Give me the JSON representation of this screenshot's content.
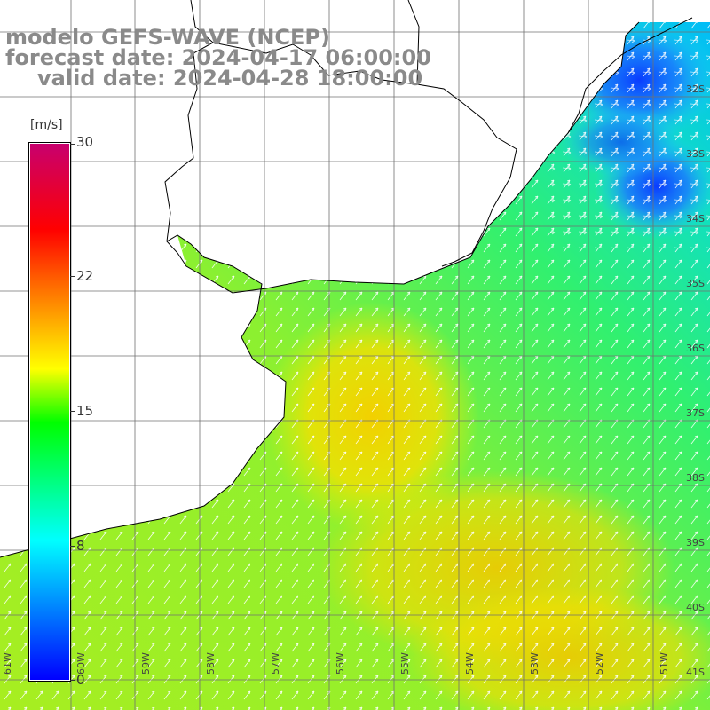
{
  "title": {
    "model": "modelo GEFS-WAVE (NCEP)",
    "forecast": "forecast date: 2024-04-17 06:00:00",
    "valid": "valid date: 2024-04-28 18:00:00"
  },
  "colorbar": {
    "unit": "[m/s]",
    "ticks": [
      "30",
      "22",
      "15",
      "8",
      "0"
    ],
    "tick_values": [
      30,
      22,
      15,
      8,
      0
    ],
    "colors": [
      "#0000ff",
      "#00ffff",
      "#00ff00",
      "#ffff00",
      "#ff6600",
      "#ff0000",
      "#c8006e"
    ]
  },
  "map": {
    "lon_labels": [
      "61W",
      "60W",
      "59W",
      "58W",
      "57W",
      "56W",
      "55W",
      "54W",
      "53W",
      "52W",
      "51W"
    ],
    "lat_labels": [
      "32S",
      "33S",
      "34S",
      "35S",
      "36S",
      "37S",
      "38S",
      "39S",
      "40S",
      "41S"
    ],
    "land_color": "#ffffff",
    "coast_color": "#000000"
  }
}
